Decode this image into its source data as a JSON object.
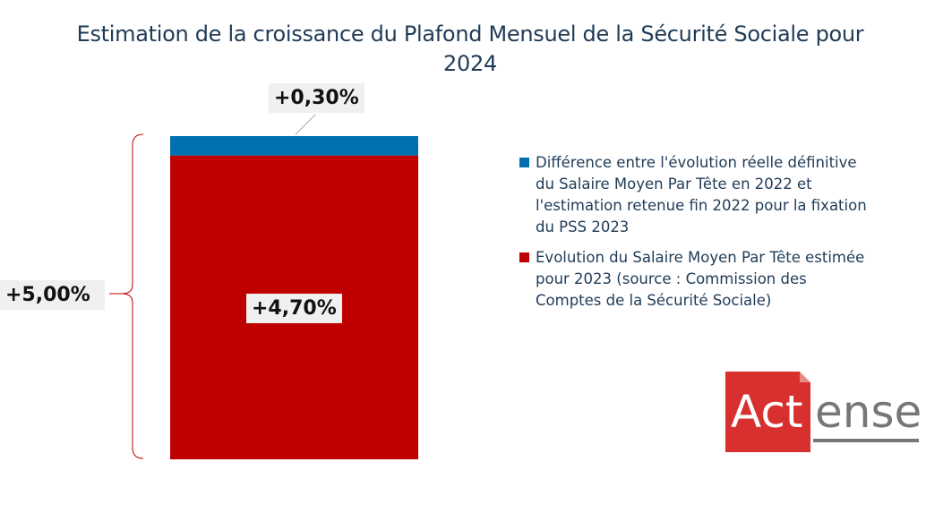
{
  "chart_data": {
    "type": "bar",
    "stacked": true,
    "title": "Estimation de la croissance du Plafond Mensuel de la Sécurité Sociale pour 2024",
    "categories": [
      ""
    ],
    "series": [
      {
        "name": "Evolution du Salaire Moyen Par Tête estimée pour 2023 (source : Commission des Comptes de la Sécurité Sociale)",
        "values": [
          4.7
        ],
        "label": "+4,70%",
        "color": "#c00000"
      },
      {
        "name": "Différence entre l'évolution réelle définitive du Salaire Moyen Par Tête en 2022 et l'estimation retenue fin 2022 pour la fixation du PSS 2023",
        "values": [
          0.3
        ],
        "label": "+0,30%",
        "color": "#0070b0"
      }
    ],
    "total": {
      "value": 5.0,
      "label": "+5,00%"
    },
    "legend_position": "right",
    "grid": false,
    "axes_visible": false
  },
  "logo": {
    "text_a": "Act",
    "text_b": "ense",
    "box_color": "#d8302f",
    "text_color": "#777777"
  }
}
